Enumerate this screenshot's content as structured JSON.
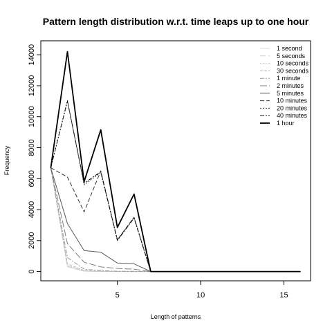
{
  "chart_data": {
    "type": "line",
    "title": "Pattern length distribution w.r.t. time leaps up to one hour",
    "xlabel": "Length of patterns",
    "ylabel": "Frequency",
    "xlim": [
      0.4,
      16.6
    ],
    "ylim": [
      -600,
      14900
    ],
    "x_ticks": [
      5,
      10,
      15
    ],
    "y_ticks": [
      0,
      2000,
      4000,
      6000,
      8000,
      10000,
      12000,
      14000
    ],
    "grid": false,
    "legend_position": "top-right",
    "x": [
      1,
      2,
      3,
      4,
      5,
      6,
      7,
      8,
      9,
      10,
      11,
      12,
      13,
      14,
      15,
      16
    ],
    "series": [
      {
        "name": "1 second",
        "color": "#dcdcdc",
        "dash": "",
        "width": 1,
        "values": [
          6700,
          300,
          20,
          5,
          0,
          0,
          0,
          0,
          0,
          0,
          0,
          0,
          0,
          0,
          0,
          0
        ]
      },
      {
        "name": "5 seconds",
        "color": "#d2d2d2",
        "dash": "8,4",
        "width": 1,
        "values": [
          6700,
          350,
          30,
          10,
          0,
          0,
          0,
          0,
          0,
          0,
          0,
          0,
          0,
          0,
          0,
          0
        ]
      },
      {
        "name": "10 seconds",
        "color": "#c6c6c6",
        "dash": "2,2",
        "width": 1,
        "values": [
          6700,
          400,
          40,
          15,
          5,
          0,
          0,
          0,
          0,
          0,
          0,
          0,
          0,
          0,
          0,
          0
        ]
      },
      {
        "name": "30 seconds",
        "color": "#b4b4b4",
        "dash": "4,2",
        "width": 1,
        "values": [
          6700,
          500,
          60,
          20,
          5,
          0,
          0,
          0,
          0,
          0,
          0,
          0,
          0,
          0,
          0,
          0
        ]
      },
      {
        "name": "1 minute",
        "color": "#9a9a9a",
        "dash": "6,2,2,2",
        "width": 1,
        "values": [
          6700,
          900,
          150,
          60,
          20,
          10,
          0,
          0,
          0,
          0,
          0,
          0,
          0,
          0,
          0,
          0
        ]
      },
      {
        "name": "2 minutes",
        "color": "#808080",
        "dash": "10,3",
        "width": 1,
        "values": [
          6700,
          1800,
          600,
          300,
          200,
          150,
          0,
          0,
          0,
          0,
          0,
          0,
          0,
          0,
          0,
          0
        ]
      },
      {
        "name": "5 minutes",
        "color": "#5a5a5a",
        "dash": "",
        "width": 1,
        "values": [
          6700,
          3100,
          1350,
          1250,
          550,
          500,
          0,
          0,
          0,
          0,
          0,
          0,
          0,
          0,
          0,
          0
        ]
      },
      {
        "name": "10 minutes",
        "color": "#333333",
        "dash": "6,3",
        "width": 1,
        "values": [
          6700,
          6100,
          3850,
          6500,
          2050,
          3500,
          0,
          0,
          0,
          0,
          0,
          0,
          0,
          0,
          0,
          0
        ]
      },
      {
        "name": "20 minutes",
        "color": "#222222",
        "dash": "2,2",
        "width": 1,
        "values": [
          6700,
          11050,
          5600,
          6400,
          2050,
          3500,
          0,
          0,
          0,
          0,
          0,
          0,
          0,
          0,
          0,
          0
        ]
      },
      {
        "name": "40 minutes",
        "color": "#111111",
        "dash": "6,2,2,2",
        "width": 1,
        "values": [
          6700,
          11000,
          5700,
          6450,
          2000,
          3450,
          0,
          0,
          0,
          0,
          0,
          0,
          0,
          0,
          0,
          0
        ]
      },
      {
        "name": "1 hour",
        "color": "#000000",
        "dash": "",
        "width": 1.8,
        "values": [
          6700,
          14200,
          5800,
          9150,
          2850,
          5000,
          0,
          0,
          0,
          0,
          0,
          0,
          0,
          0,
          0,
          0
        ]
      }
    ]
  }
}
